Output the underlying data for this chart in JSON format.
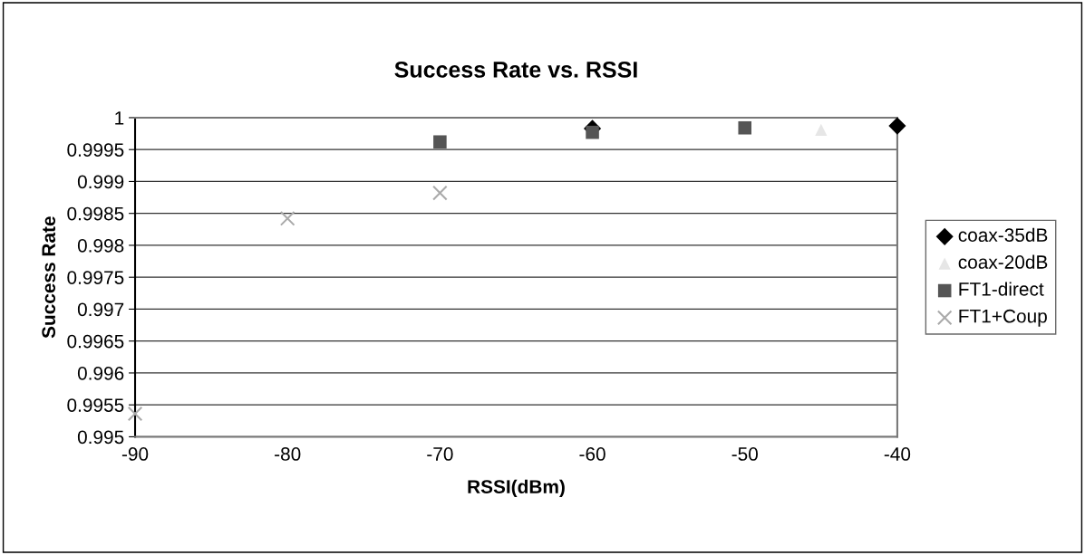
{
  "chart_data": {
    "type": "scatter",
    "title": "Success Rate vs. RSSI",
    "xlabel": "RSSI(dBm)",
    "ylabel": "Success Rate",
    "xlim": [
      -90,
      -40
    ],
    "xticks": [
      -90,
      -80,
      -70,
      -60,
      -50,
      -40
    ],
    "ylim": [
      0.995,
      1
    ],
    "yticks": [
      0.995,
      0.9955,
      0.996,
      0.9965,
      0.997,
      0.9975,
      0.998,
      0.9985,
      0.999,
      0.9995,
      1
    ],
    "grid": "y",
    "legend": "right",
    "series": [
      {
        "name": "coax-35dB",
        "color": "#000000",
        "marker": "diamond",
        "x": [
          -60,
          -40
        ],
        "values": [
          0.99983,
          0.99987
        ]
      },
      {
        "name": "coax-20dB",
        "color": "#e6e6e6",
        "marker": "triangle",
        "x": [
          -45
        ],
        "values": [
          0.99981
        ]
      },
      {
        "name": "FT1-direct",
        "color": "#555555",
        "marker": "square",
        "x": [
          -70,
          -60,
          -50
        ],
        "values": [
          0.99962,
          0.99977,
          0.99984
        ]
      },
      {
        "name": "FT1+Coup",
        "color": "#aaaaaa",
        "marker": "cross",
        "x": [
          -90,
          -80,
          -70
        ],
        "values": [
          0.99536,
          0.99842,
          0.99882
        ]
      }
    ]
  }
}
